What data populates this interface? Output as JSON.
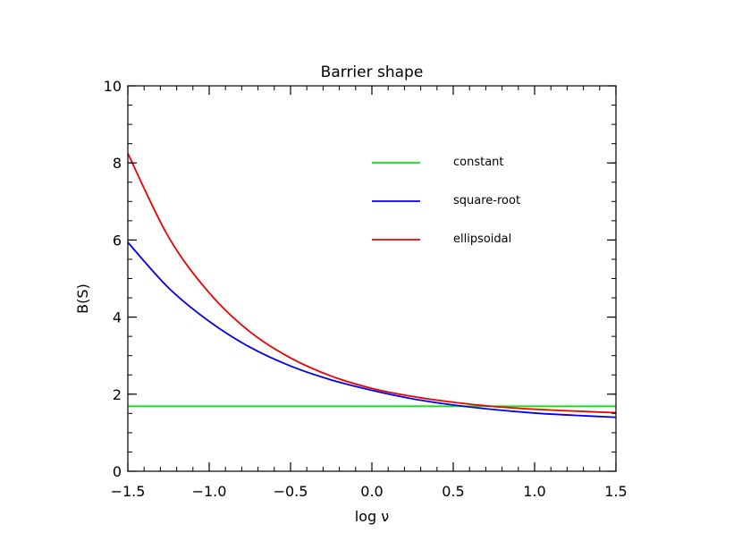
{
  "chart_data": {
    "type": "line",
    "title": "Barrier shape",
    "xlabel": "log ν",
    "ylabel": "B(S)",
    "xlim": [
      -1.5,
      1.5
    ],
    "ylim": [
      0,
      10
    ],
    "x_ticks": [
      -1.5,
      -1.0,
      -0.5,
      0.0,
      0.5,
      1.0,
      1.5
    ],
    "x_tick_labels": [
      "−1.5",
      "−1.0",
      "−0.5",
      "0.0",
      "0.5",
      "1.0",
      "1.5"
    ],
    "y_ticks": [
      0,
      2,
      4,
      6,
      8,
      10
    ],
    "y_tick_labels": [
      "0",
      "2",
      "4",
      "6",
      "8",
      "10"
    ],
    "grid": false,
    "legend_position": "top-right",
    "series": [
      {
        "name": "constant",
        "color": "#00ee00",
        "x": [
          -1.5,
          -1.25,
          -1.0,
          -0.75,
          -0.5,
          -0.25,
          0.0,
          0.25,
          0.5,
          0.75,
          1.0,
          1.25,
          1.5
        ],
        "y": [
          1.686,
          1.686,
          1.686,
          1.686,
          1.686,
          1.686,
          1.686,
          1.686,
          1.686,
          1.686,
          1.686,
          1.686,
          1.686
        ]
      },
      {
        "name": "square-root",
        "color": "#0000ee",
        "x": [
          -1.5,
          -1.25,
          -1.0,
          -0.75,
          -0.5,
          -0.25,
          0.0,
          0.25,
          0.5,
          0.75,
          1.0,
          1.25,
          1.5
        ],
        "y": [
          5.94,
          4.76,
          3.89,
          3.22,
          2.73,
          2.37,
          2.1,
          1.88,
          1.72,
          1.6,
          1.51,
          1.45,
          1.4
        ]
      },
      {
        "name": "ellipsoidal",
        "color": "#ee0000",
        "x": [
          -1.5,
          -1.25,
          -1.0,
          -0.75,
          -0.5,
          -0.25,
          0.0,
          0.25,
          0.5,
          0.75,
          1.0,
          1.25,
          1.5
        ],
        "y": [
          8.25,
          6.08,
          4.63,
          3.62,
          2.94,
          2.47,
          2.15,
          1.94,
          1.79,
          1.68,
          1.61,
          1.56,
          1.52
        ]
      }
    ]
  }
}
